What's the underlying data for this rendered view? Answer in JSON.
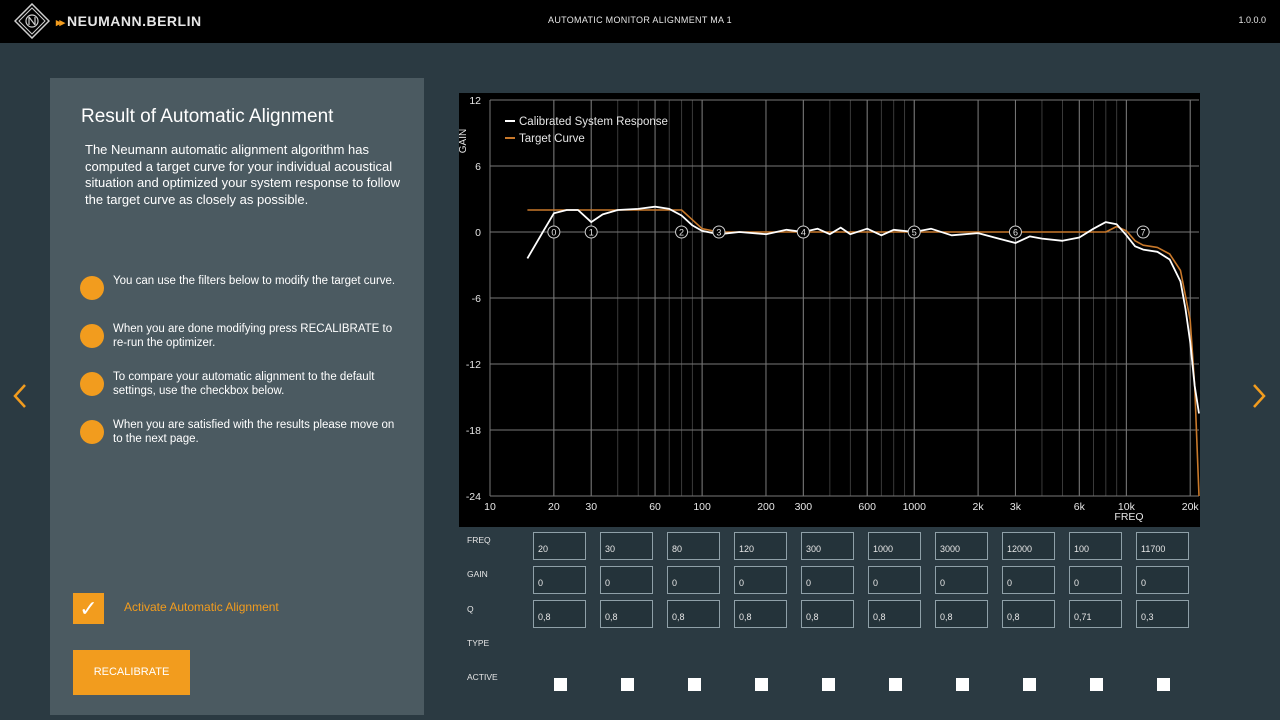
{
  "header": {
    "brand": "NEUMANN.BERLIN",
    "title": "AUTOMATIC MONITOR ALIGNMENT MA 1",
    "version": "1.0.0.0"
  },
  "panel": {
    "title": "Result of Automatic Alignment",
    "intro": "The Neumann automatic alignment algorithm has computed a target curve for your individual acoustical situation and optimized your system response to follow the target curve as closely as possible.",
    "steps": [
      "You can use the filters below to modify the target curve.",
      "When you are done modifying press RECALIBRATE to re-run the optimizer.",
      "To compare your automatic alignment to the default settings, use the checkbox below.",
      "When you are satisfied with the results please move on to the next page."
    ],
    "checkbox_label": "Activate Automatic Alignment",
    "checkbox_checked": true,
    "recalibrate_label": "RECALIBRATE"
  },
  "colors": {
    "accent": "#f29c1e",
    "calibrated_line": "#ffffff",
    "target_line": "#c8782a",
    "panel_bg": "#4b5a61",
    "page_bg": "#2b3a42"
  },
  "chart_data": {
    "type": "line",
    "xlabel": "FREQ",
    "ylabel": "GAIN",
    "x_scale": "log",
    "xlim": [
      10,
      22000
    ],
    "ylim": [
      -24,
      12
    ],
    "x_ticks": [
      {
        "v": 10,
        "label": "10"
      },
      {
        "v": 20,
        "label": "20"
      },
      {
        "v": 30,
        "label": "30"
      },
      {
        "v": 60,
        "label": "60"
      },
      {
        "v": 100,
        "label": "100"
      },
      {
        "v": 200,
        "label": "200"
      },
      {
        "v": 300,
        "label": "300"
      },
      {
        "v": 600,
        "label": "600"
      },
      {
        "v": 1000,
        "label": "1000"
      },
      {
        "v": 2000,
        "label": "2k"
      },
      {
        "v": 3000,
        "label": "3k"
      },
      {
        "v": 6000,
        "label": "6k"
      },
      {
        "v": 10000,
        "label": "10k"
      },
      {
        "v": 20000,
        "label": "20k"
      }
    ],
    "y_ticks": [
      12,
      6,
      0,
      -6,
      -12,
      -18,
      -24
    ],
    "grid": true,
    "legend_position": "top-left",
    "series": [
      {
        "name": "Calibrated System Response",
        "color": "#ffffff",
        "points": [
          [
            15,
            -2.4
          ],
          [
            18,
            0.2
          ],
          [
            20,
            1.7
          ],
          [
            23,
            2.0
          ],
          [
            26,
            2.0
          ],
          [
            30,
            0.9
          ],
          [
            34,
            1.6
          ],
          [
            40,
            2.0
          ],
          [
            50,
            2.1
          ],
          [
            60,
            2.3
          ],
          [
            70,
            2.1
          ],
          [
            80,
            1.5
          ],
          [
            90,
            0.6
          ],
          [
            100,
            0.1
          ],
          [
            120,
            -0.2
          ],
          [
            150,
            0.0
          ],
          [
            200,
            -0.2
          ],
          [
            250,
            0.2
          ],
          [
            300,
            0.0
          ],
          [
            350,
            0.3
          ],
          [
            400,
            -0.2
          ],
          [
            450,
            0.4
          ],
          [
            500,
            -0.2
          ],
          [
            600,
            0.3
          ],
          [
            700,
            -0.3
          ],
          [
            800,
            0.2
          ],
          [
            1000,
            0.0
          ],
          [
            1200,
            0.3
          ],
          [
            1500,
            -0.3
          ],
          [
            2000,
            -0.1
          ],
          [
            2500,
            -0.6
          ],
          [
            3000,
            -1.0
          ],
          [
            3500,
            -0.4
          ],
          [
            4000,
            -0.6
          ],
          [
            5000,
            -0.8
          ],
          [
            6000,
            -0.5
          ],
          [
            7000,
            0.3
          ],
          [
            8000,
            0.9
          ],
          [
            9000,
            0.7
          ],
          [
            10000,
            -0.3
          ],
          [
            11000,
            -1.3
          ],
          [
            12000,
            -1.6
          ],
          [
            14000,
            -1.8
          ],
          [
            16000,
            -2.5
          ],
          [
            18000,
            -4.5
          ],
          [
            19000,
            -7
          ],
          [
            20000,
            -10
          ],
          [
            21000,
            -14
          ],
          [
            22000,
            -16.5
          ]
        ]
      },
      {
        "name": "Target Curve",
        "color": "#c8782a",
        "points": [
          [
            15,
            2.0
          ],
          [
            20,
            2.0
          ],
          [
            40,
            2.0
          ],
          [
            60,
            2.0
          ],
          [
            80,
            2.0
          ],
          [
            100,
            0.3
          ],
          [
            120,
            0.0
          ],
          [
            300,
            0.0
          ],
          [
            1000,
            0.0
          ],
          [
            3000,
            0.0
          ],
          [
            6000,
            0.0
          ],
          [
            8000,
            0.0
          ],
          [
            9000,
            0.5
          ],
          [
            10000,
            0.1
          ],
          [
            11000,
            -0.8
          ],
          [
            12000,
            -1.2
          ],
          [
            14000,
            -1.4
          ],
          [
            16000,
            -2.0
          ],
          [
            18000,
            -3.5
          ],
          [
            20000,
            -8
          ],
          [
            21000,
            -14
          ],
          [
            22000,
            -24
          ]
        ]
      }
    ],
    "filter_markers": [
      {
        "label": "0",
        "x": 20,
        "y": 0
      },
      {
        "label": "1",
        "x": 30,
        "y": 0
      },
      {
        "label": "2",
        "x": 80,
        "y": 0
      },
      {
        "label": "3",
        "x": 120,
        "y": 0
      },
      {
        "label": "4",
        "x": 300,
        "y": 0
      },
      {
        "label": "5",
        "x": 1000,
        "y": 0
      },
      {
        "label": "6",
        "x": 3000,
        "y": 0
      },
      {
        "label": "7",
        "x": 12000,
        "y": 0
      }
    ]
  },
  "filters": {
    "row_labels": {
      "freq": "FREQ",
      "gain": "GAIN",
      "q": "Q",
      "type": "TYPE",
      "active": "ACTIVE"
    },
    "freq": [
      "20",
      "30",
      "80",
      "120",
      "300",
      "1000",
      "3000",
      "12000",
      "100",
      "11700"
    ],
    "gain": [
      "0",
      "0",
      "0",
      "0",
      "0",
      "0",
      "0",
      "0",
      "0",
      "0"
    ],
    "q": [
      "0,8",
      "0,8",
      "0,8",
      "0,8",
      "0,8",
      "0,8",
      "0,8",
      "0,8",
      "0,71",
      "0,3"
    ]
  }
}
